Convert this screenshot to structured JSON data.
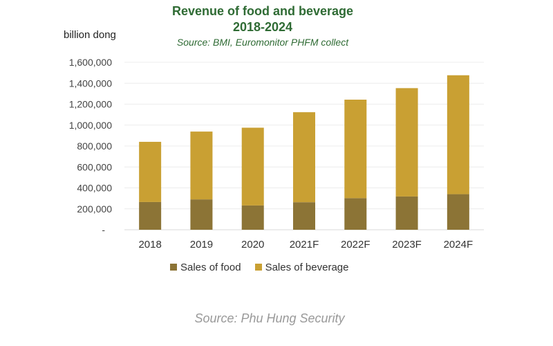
{
  "chart_data": {
    "type": "bar",
    "stacked": true,
    "title": "Revenue of food and beverage",
    "title_line2": "2018-2024",
    "subtitle": "Source: BMI, Euromonitor PHFM collect",
    "ylabel": "billion dong",
    "xlabel": "",
    "ylim": [
      0,
      1600000
    ],
    "yticks": [
      "-",
      "200,000",
      "400,000",
      "600,000",
      "800,000",
      "1,000,000",
      "1,200,000",
      "1,400,000",
      "1,600,000"
    ],
    "grid": true,
    "legend_position": "bottom",
    "categories": [
      "2018",
      "2019",
      "2020",
      "2021F",
      "2022F",
      "2023F",
      "2024F"
    ],
    "series": [
      {
        "name": "Sales of food",
        "color": "#8c7436",
        "values": [
          265000,
          290000,
          232000,
          263000,
          302000,
          318000,
          340000
        ]
      },
      {
        "name": "Sales of beverage",
        "color": "#c9a033",
        "values": [
          575000,
          648000,
          743000,
          860000,
          941000,
          1035000,
          1136000
        ]
      }
    ]
  },
  "caption": "Source: Phu Hung Security"
}
